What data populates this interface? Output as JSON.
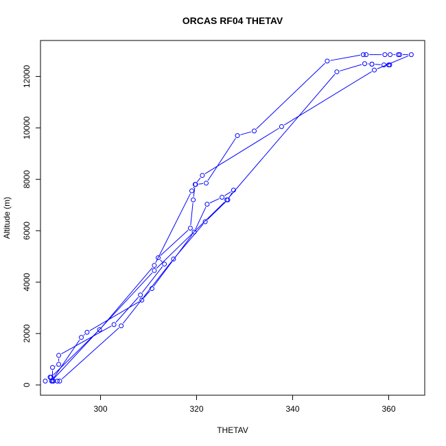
{
  "chart_data": {
    "type": "line",
    "title": "ORCAS RF04 THETAV",
    "xlabel": "THETAV",
    "ylabel": "Altitude (m)",
    "xlim": [
      287.5,
      367.5
    ],
    "ylim": [
      -400,
      13400
    ],
    "x_ticks": [
      300,
      320,
      340,
      360
    ],
    "y_ticks": [
      0,
      2000,
      4000,
      6000,
      8000,
      10000,
      12000
    ],
    "grid": false,
    "legend": "none",
    "colors": {
      "series": "#0000ff"
    },
    "series": [
      {
        "marker": "open-circle",
        "points": [
          [
            288.5,
            150
          ],
          [
            289.5,
            300
          ],
          [
            290.0,
            150
          ],
          [
            290.0,
            680
          ],
          [
            291.3,
            800
          ],
          [
            291.3,
            1150
          ],
          [
            302.8,
            2350
          ],
          [
            308.3,
            3500
          ],
          [
            313.3,
            4700
          ],
          [
            312.0,
            4950
          ],
          [
            318.7,
            6100
          ],
          [
            319.3,
            7200
          ],
          [
            319.7,
            7800
          ],
          [
            321.2,
            8150
          ],
          [
            337.7,
            10050
          ],
          [
            357.0,
            12250
          ],
          [
            364.7,
            12850
          ],
          [
            362.3,
            12850
          ],
          [
            362.0,
            12850
          ],
          [
            360.3,
            12850
          ],
          [
            359.2,
            12850
          ],
          [
            355.3,
            12850
          ],
          [
            354.7,
            12850
          ],
          [
            347.2,
            12600
          ],
          [
            332.0,
            9880
          ],
          [
            328.5,
            9700
          ],
          [
            322.0,
            7850
          ],
          [
            319.8,
            7800
          ],
          [
            319.0,
            7550
          ],
          [
            311.2,
            4650
          ],
          [
            299.8,
            2150
          ],
          [
            289.7,
            300
          ],
          [
            290.2,
            150
          ],
          [
            291.0,
            150
          ],
          [
            291.5,
            150
          ],
          [
            304.3,
            2300
          ],
          [
            315.2,
            4900
          ],
          [
            321.8,
            6350
          ],
          [
            326.5,
            7200
          ],
          [
            327.7,
            7580
          ],
          [
            325.3,
            7300
          ],
          [
            322.2,
            7030
          ],
          [
            319.5,
            5950
          ],
          [
            310.7,
            3750
          ],
          [
            308.6,
            3300
          ],
          [
            297.2,
            2050
          ],
          [
            296.0,
            1850
          ],
          [
            289.8,
            150
          ],
          [
            311.2,
            4450
          ],
          [
            326.3,
            7200
          ],
          [
            349.2,
            12180
          ],
          [
            355.0,
            12500
          ],
          [
            356.5,
            12480
          ],
          [
            356.5,
            12480
          ],
          [
            359.0,
            12450
          ],
          [
            360.0,
            12450
          ],
          [
            360.2,
            12450
          ]
        ]
      }
    ]
  }
}
